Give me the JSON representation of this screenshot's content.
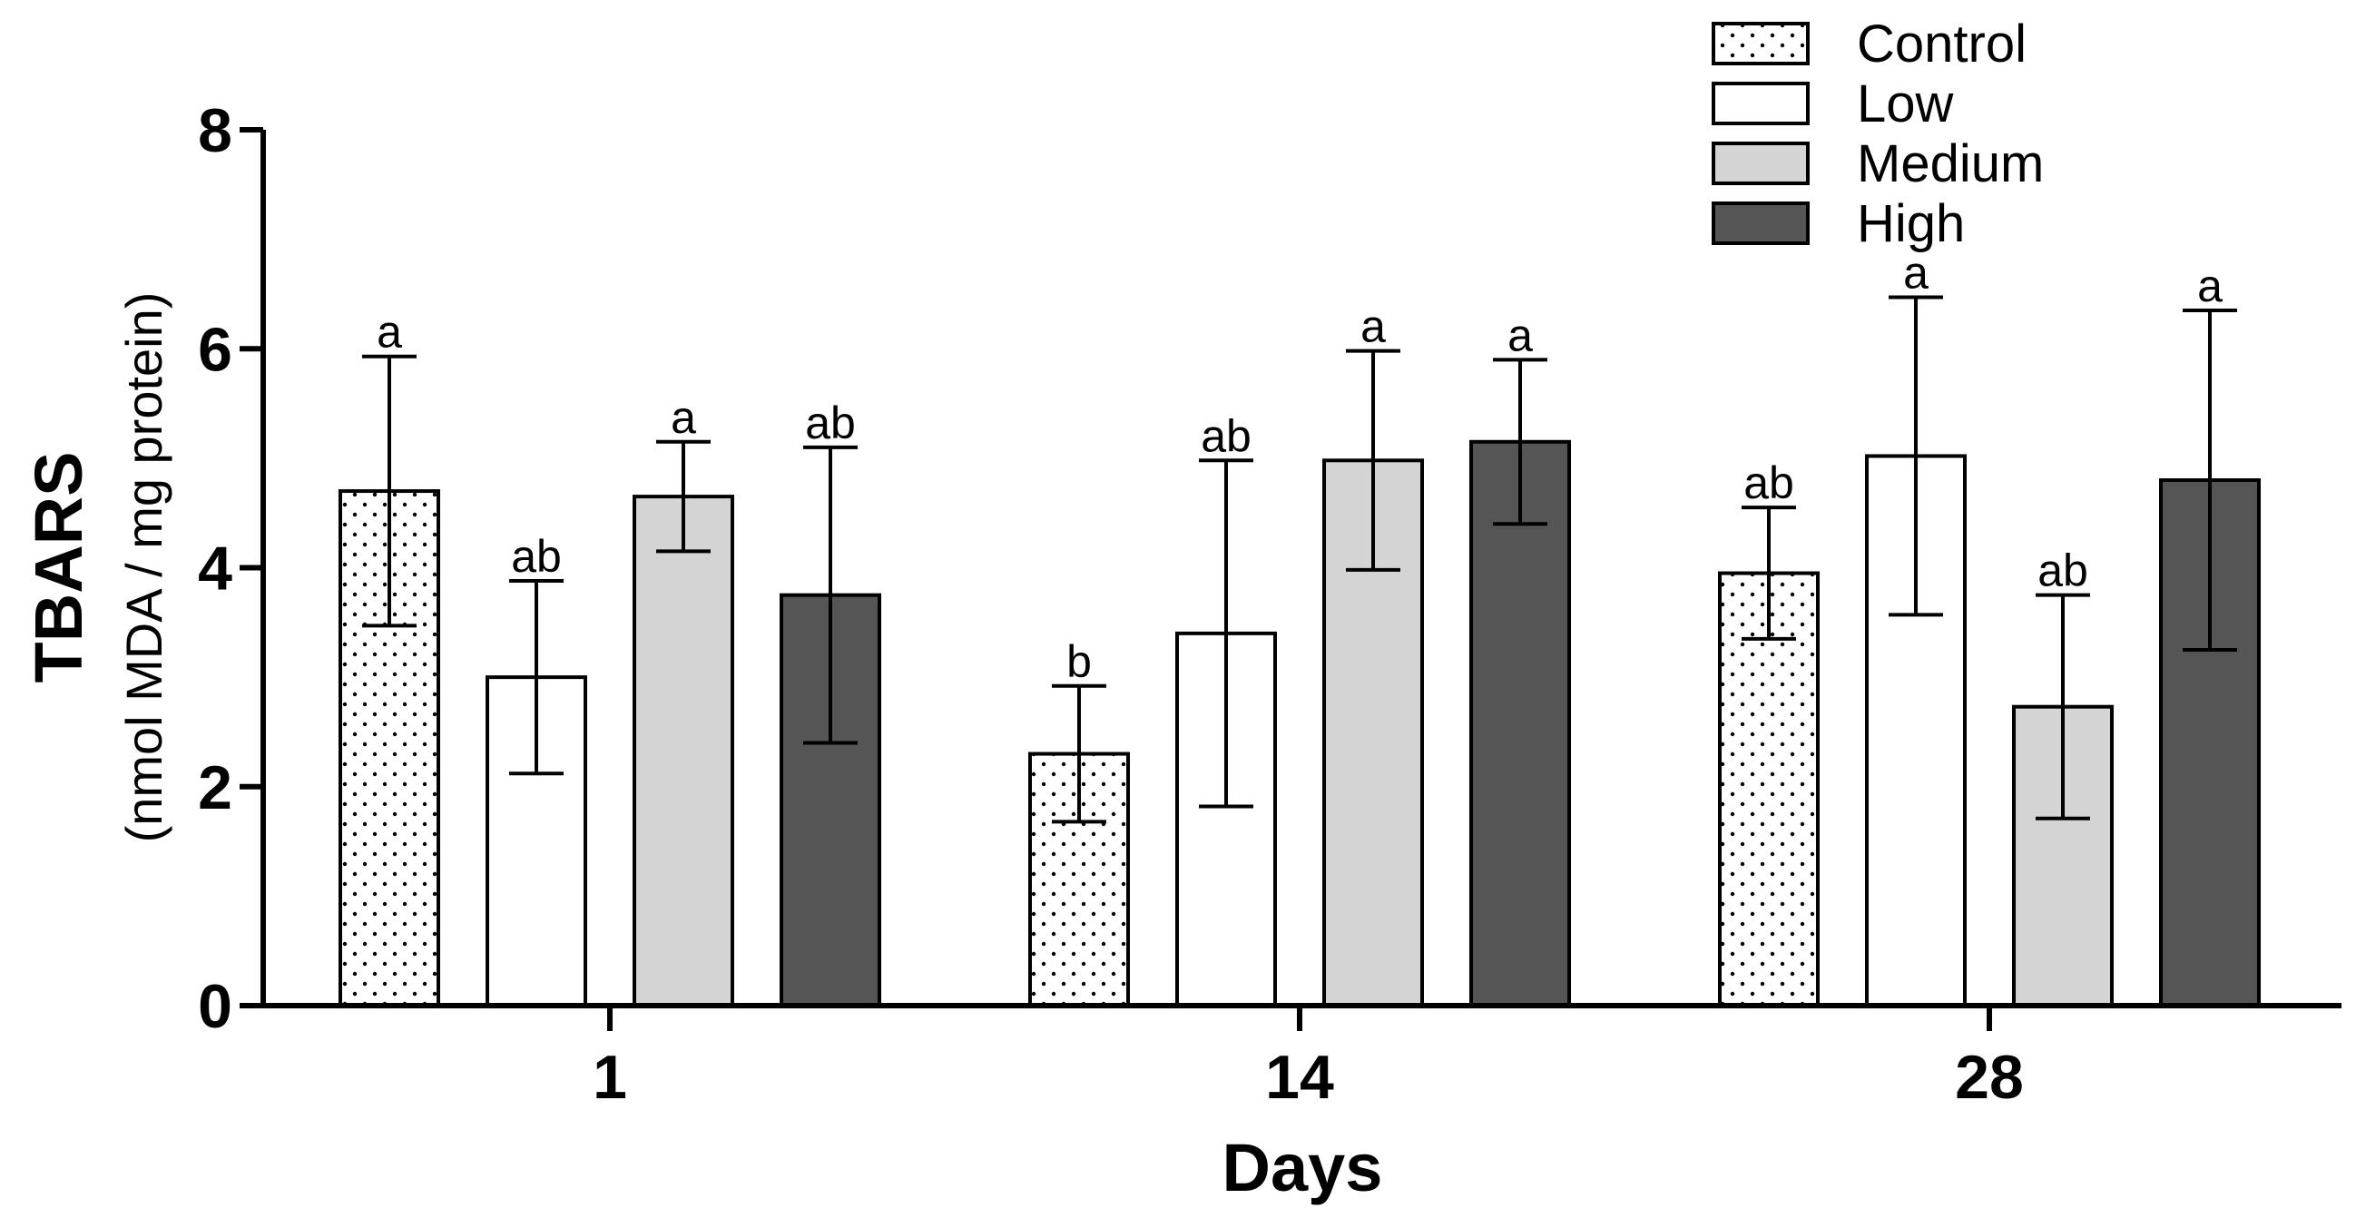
{
  "chart_data": {
    "type": "bar",
    "title": "",
    "xlabel": "Days",
    "ylabel": "TBARS",
    "ylabel_sub": "(nmol MDA / mg protein)",
    "ylim": [
      0,
      8
    ],
    "yticks": [
      "0",
      "2",
      "4",
      "6",
      "8"
    ],
    "categories": [
      "1",
      "14",
      "28"
    ],
    "legend_position": "top-right",
    "series": [
      {
        "name": "Control",
        "fill": "#ffffff",
        "pattern": "dots",
        "values": [
          4.7,
          2.3,
          3.95
        ],
        "errors": [
          1.23,
          0.62,
          0.6
        ],
        "labels": [
          "a",
          "b",
          "ab"
        ]
      },
      {
        "name": "Low",
        "fill": "#ffffff",
        "pattern": "none",
        "values": [
          3.0,
          3.4,
          5.02
        ],
        "errors": [
          0.88,
          1.58,
          1.45
        ],
        "labels": [
          "ab",
          "ab",
          "a"
        ]
      },
      {
        "name": "Medium",
        "fill": "#d4d4d4",
        "pattern": "none",
        "values": [
          4.65,
          4.98,
          2.73
        ],
        "errors": [
          0.5,
          1.0,
          1.02
        ],
        "labels": [
          "a",
          "a",
          "ab"
        ]
      },
      {
        "name": "High",
        "fill": "#555555",
        "pattern": "none",
        "values": [
          3.75,
          5.15,
          4.8
        ],
        "errors": [
          1.35,
          0.75,
          1.55
        ],
        "labels": [
          "ab",
          "a",
          "a"
        ]
      }
    ]
  }
}
